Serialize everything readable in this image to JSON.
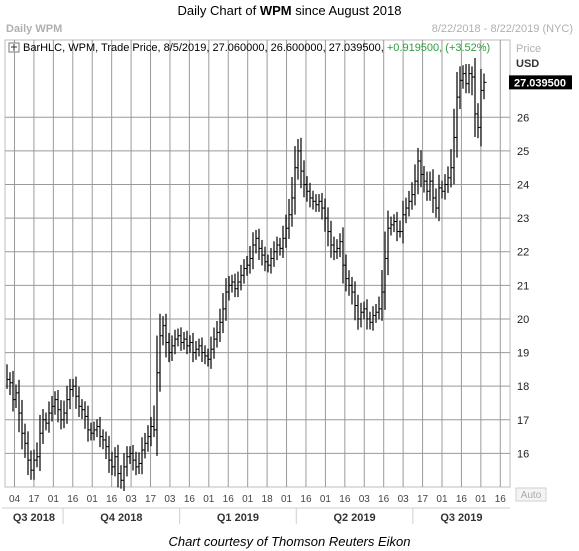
{
  "header": {
    "title_prefix": "Daily Chart of ",
    "title_symbol": "WPM",
    "title_suffix": " since August 2018",
    "panel_label": "Daily WPM",
    "date_range": "8/22/2018 - 8/22/2019 (NYC)"
  },
  "legend": {
    "label": "BarHLC, WPM, Trade Price, 8/5/2019, 27.060000, 26.600000, 27.039500, ",
    "change": "+0.919500, (+3.52%)"
  },
  "axis": {
    "price_label": "Price",
    "currency_label": "USD",
    "auto_label": "Auto"
  },
  "last_price_label": "27.039500",
  "footer": {
    "credit": "Chart courtesy of Thomson Reuters Eikon"
  },
  "colors": {
    "change_green": "#2e9e3a",
    "grid": "#9a9a9a",
    "bar": "#000000"
  },
  "chart_data": {
    "type": "bar",
    "style": "HLC bars",
    "ylim": [
      15,
      28.3
    ],
    "y_ticks": [
      16,
      17,
      18,
      19,
      20,
      21,
      22,
      23,
      24,
      25,
      26
    ],
    "last_value": 27.0395,
    "x_ticks": [
      "04",
      "17",
      "01",
      "16",
      "01",
      "16",
      "03",
      "17",
      "03",
      "16",
      "01",
      "16",
      "01",
      "18",
      "01",
      "16",
      "01",
      "16",
      "03",
      "16",
      "03",
      "17",
      "01",
      "16",
      "01",
      "16"
    ],
    "x_groups": [
      {
        "label": "Q3 2018",
        "span": [
          0,
          2
        ]
      },
      {
        "label": "Q4 2018",
        "span": [
          3,
          8
        ]
      },
      {
        "label": "Q1 2019",
        "span": [
          9,
          14
        ]
      },
      {
        "label": "Q2 2019",
        "span": [
          15,
          20
        ]
      },
      {
        "label": "Q3 2019",
        "span": [
          21,
          25
        ]
      }
    ],
    "closes": [
      18.2,
      18.1,
      17.6,
      17.8,
      17.2,
      16.6,
      16.3,
      15.8,
      15.5,
      15.8,
      15.9,
      16.6,
      17.0,
      16.9,
      17.2,
      17.4,
      17.6,
      17.3,
      17.0,
      17.2,
      17.6,
      17.9,
      18.0,
      17.7,
      17.4,
      17.3,
      17.1,
      16.7,
      16.6,
      16.7,
      16.8,
      16.5,
      16.4,
      16.2,
      15.8,
      15.6,
      15.9,
      15.4,
      15.2,
      15.6,
      15.9,
      16.0,
      15.8,
      15.6,
      15.7,
      16.1,
      16.3,
      16.5,
      16.8,
      16.7,
      18.4,
      19.5,
      19.8,
      19.3,
      19.0,
      19.2,
      19.4,
      19.5,
      19.3,
      19.4,
      19.2,
      19.3,
      19.0,
      19.1,
      19.2,
      19.0,
      18.9,
      18.8,
      19.1,
      19.4,
      19.6,
      19.9,
      20.3,
      20.8,
      21.0,
      21.1,
      20.9,
      21.1,
      21.3,
      21.5,
      21.6,
      21.8,
      22.2,
      22.4,
      22.1,
      21.9,
      21.7,
      21.6,
      21.8,
      22.0,
      22.2,
      22.1,
      22.4,
      22.7,
      23.1,
      23.6,
      24.5,
      25.0,
      24.4,
      24.0,
      23.8,
      23.6,
      23.5,
      23.4,
      23.5,
      23.3,
      23.0,
      22.6,
      22.2,
      22.0,
      22.1,
      22.3,
      21.6,
      21.2,
      21.0,
      20.8,
      20.4,
      20.0,
      20.2,
      20.3,
      20.0,
      19.9,
      20.1,
      20.2,
      20.3,
      20.8,
      21.8,
      22.7,
      22.8,
      22.9,
      22.6,
      22.6,
      23.1,
      23.3,
      23.5,
      23.7,
      24.1,
      24.7,
      24.3,
      24.1,
      23.8,
      24.1,
      23.6,
      23.3,
      23.9,
      23.8,
      24.0,
      24.2,
      24.5,
      25.4,
      26.6,
      27.1,
      27.3,
      27.0,
      27.3,
      27.2,
      26.1,
      25.7,
      26.8,
      27.0395
    ]
  }
}
